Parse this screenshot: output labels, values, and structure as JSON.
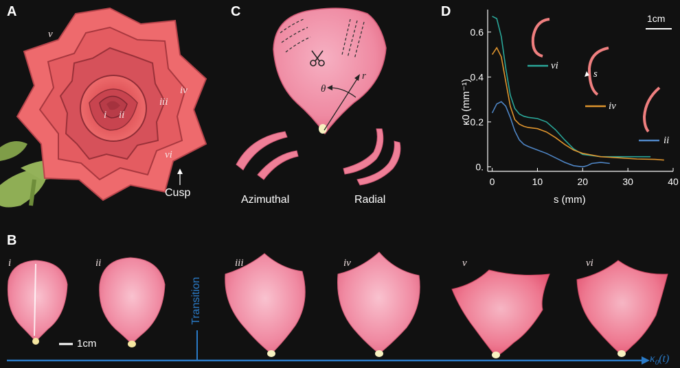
{
  "panels": {
    "a": "A",
    "b": "B",
    "c": "C",
    "d": "D"
  },
  "panel_a": {
    "labels": [
      "i",
      "ii",
      "iii",
      "iv",
      "v",
      "vi"
    ],
    "cusp_label": "Cusp"
  },
  "panel_b": {
    "labels": [
      "i",
      "ii",
      "iii",
      "iv",
      "v",
      "vi"
    ],
    "scale_label": "1cm",
    "transition_label": "Transition",
    "axis_label_symbol": "κ",
    "axis_label_sub": "0",
    "axis_label_arg": "(t)"
  },
  "panel_c": {
    "theta": "θ",
    "r": "r",
    "azimuthal": "Azimuthal",
    "radial": "Radial"
  },
  "panel_d": {
    "scale_label": "1cm",
    "s_label": "s",
    "curve_labels": [
      "vi",
      "iv",
      "ii"
    ],
    "colors": {
      "vi": "#2aa89a",
      "iv": "#e0952e",
      "ii": "#4f86c6"
    }
  },
  "chart_data": {
    "type": "line",
    "xlabel": "s (mm)",
    "ylabel": "κ0 (mm⁻¹)",
    "xlim": [
      -1,
      40
    ],
    "ylim": [
      -0.02,
      0.7
    ],
    "xticks": [
      0,
      10,
      20,
      30,
      40
    ],
    "yticks": [
      0.0,
      0.2,
      0.4,
      0.6
    ],
    "ytick_labels": [
      "0.",
      "0.2",
      "0.4",
      "0.6"
    ],
    "series": [
      {
        "name": "vi",
        "color": "#2aa89a",
        "x": [
          0,
          1,
          2,
          3,
          4,
          5,
          6,
          7,
          8,
          10,
          12,
          14,
          16,
          18,
          20,
          24,
          28,
          32,
          35
        ],
        "y": [
          0.67,
          0.66,
          0.58,
          0.44,
          0.32,
          0.26,
          0.235,
          0.225,
          0.22,
          0.215,
          0.2,
          0.165,
          0.12,
          0.08,
          0.055,
          0.045,
          0.045,
          0.045,
          0.045
        ]
      },
      {
        "name": "iv",
        "color": "#e0952e",
        "x": [
          0,
          1,
          2,
          3,
          4,
          5,
          6,
          7,
          8,
          10,
          12,
          14,
          16,
          18,
          20,
          24,
          28,
          32,
          36,
          38
        ],
        "y": [
          0.5,
          0.53,
          0.49,
          0.38,
          0.27,
          0.21,
          0.19,
          0.18,
          0.175,
          0.17,
          0.155,
          0.13,
          0.1,
          0.075,
          0.06,
          0.045,
          0.04,
          0.035,
          0.033,
          0.03
        ]
      },
      {
        "name": "ii",
        "color": "#4f86c6",
        "x": [
          0,
          1,
          2,
          3,
          4,
          5,
          6,
          7,
          8,
          10,
          12,
          14,
          16,
          18,
          20,
          21,
          22,
          24,
          26
        ],
        "y": [
          0.24,
          0.28,
          0.29,
          0.27,
          0.22,
          0.16,
          0.12,
          0.1,
          0.09,
          0.075,
          0.06,
          0.04,
          0.02,
          0.005,
          0.0,
          0.005,
          0.015,
          0.02,
          0.015
        ]
      }
    ]
  }
}
